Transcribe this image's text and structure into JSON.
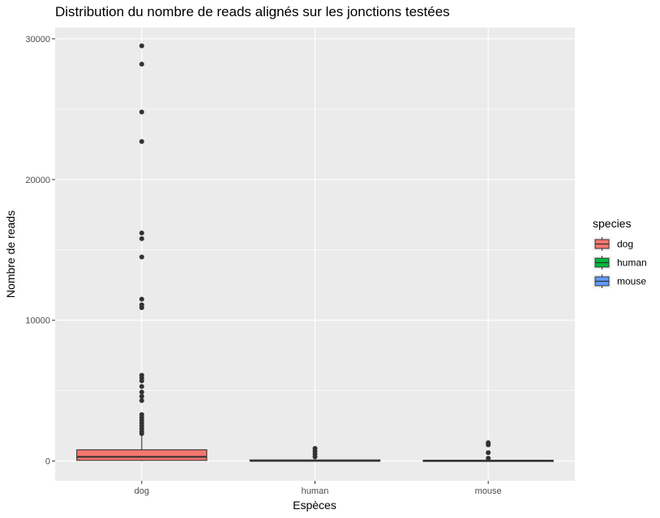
{
  "chart_data": {
    "type": "boxplot",
    "title": "Distribution du nombre de reads alignés sur les jonctions testées",
    "xlabel": "Espèces",
    "ylabel": "Nombre de reads",
    "categories": [
      "dog",
      "human",
      "mouse"
    ],
    "ylim": [
      -1400,
      30800
    ],
    "yticks": [
      0,
      10000,
      20000,
      30000
    ],
    "grid": true,
    "legend": {
      "title": "species",
      "placement": "right",
      "entries": [
        "dog",
        "human",
        "mouse"
      ]
    },
    "colors": {
      "dog": "#F8766D",
      "human": "#00BA38",
      "mouse": "#619CFF"
    },
    "panel_background": "#EBEBEB",
    "series": [
      {
        "name": "dog",
        "min": 0,
        "q1": 50,
        "median": 300,
        "q3": 800,
        "max": 1800,
        "outliers": [
          29500,
          28200,
          24800,
          22700,
          16200,
          15800,
          14500,
          11500,
          11100,
          10900,
          6100,
          5900,
          5700,
          5300,
          4900,
          4600,
          4300,
          3300,
          3100,
          2900,
          2700,
          2500,
          2300,
          2100,
          1950
        ]
      },
      {
        "name": "human",
        "min": 0,
        "q1": 5,
        "median": 20,
        "q3": 80,
        "max": 150,
        "outliers": [
          900,
          700,
          500,
          300
        ]
      },
      {
        "name": "mouse",
        "min": 0,
        "q1": 5,
        "median": 20,
        "q3": 60,
        "max": 120,
        "outliers": [
          1300,
          1150,
          600,
          200
        ]
      }
    ]
  }
}
